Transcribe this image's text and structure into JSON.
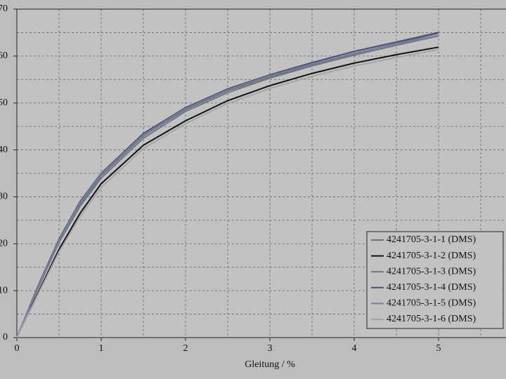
{
  "chart_data": {
    "type": "line",
    "x_label": "Gleitung / %",
    "x": [
      0,
      0.25,
      0.5,
      0.75,
      1,
      1.5,
      2,
      2.5,
      3,
      3.5,
      4,
      4.5,
      5
    ],
    "series": [
      {
        "name": "4241705-3-1-1 (DMS)",
        "color": "#6e6e7a",
        "values": [
          0,
          10.7,
          20.6,
          28.5,
          34.5,
          43,
          48.6,
          52.6,
          55.6,
          58.2,
          60.5,
          62.7,
          64.9
        ]
      },
      {
        "name": "4241705-3-1-2 (DMS)",
        "color": "#111111",
        "values": [
          0,
          9.5,
          18.8,
          26.5,
          32.8,
          41,
          46.2,
          50.5,
          53.7,
          56.3,
          58.5,
          60.3,
          61.9
        ]
      },
      {
        "name": "4241705-3-1-3 (DMS)",
        "color": "#6b7b78",
        "values": [
          0,
          10.5,
          20.3,
          28,
          34,
          42.5,
          48.2,
          52.2,
          55.3,
          57.9,
          60.2,
          62.3,
          64.3
        ]
      },
      {
        "name": "4241705-3-1-4 (DMS)",
        "color": "#4a4d73",
        "values": [
          0,
          11,
          21,
          29,
          35,
          43.5,
          49,
          53,
          56,
          58.6,
          61,
          63,
          65
        ]
      },
      {
        "name": "4241705-3-1-5 (DMS)",
        "color": "#7a7ea0",
        "values": [
          0,
          10.8,
          20.8,
          28.8,
          34.8,
          43.2,
          48.8,
          52.8,
          55.8,
          58.3,
          60.6,
          62.6,
          64.4
        ]
      },
      {
        "name": "4241705-3-1-6 (DMS)",
        "color": "#a8a4a8",
        "values": [
          0,
          9.2,
          18.3,
          25.8,
          32,
          40.3,
          45.6,
          49.9,
          53.1,
          55.7,
          57.9,
          59.7,
          61.4
        ]
      }
    ],
    "xlim": [
      0,
      5.8
    ],
    "ylim": [
      0,
      70
    ],
    "xticks": [
      0,
      1,
      2,
      3,
      4,
      5
    ],
    "yticks": [
      0,
      10,
      20,
      30,
      40,
      50,
      60,
      70
    ],
    "xgrid": [
      0.5,
      1,
      1.5,
      2,
      2.5,
      3,
      3.5,
      4,
      4.5,
      5,
      5.5
    ],
    "ygrid": [
      5,
      10,
      15,
      20,
      25,
      30,
      35,
      40,
      45,
      50,
      55,
      60,
      65
    ],
    "grid": true,
    "legend": "lower right"
  }
}
